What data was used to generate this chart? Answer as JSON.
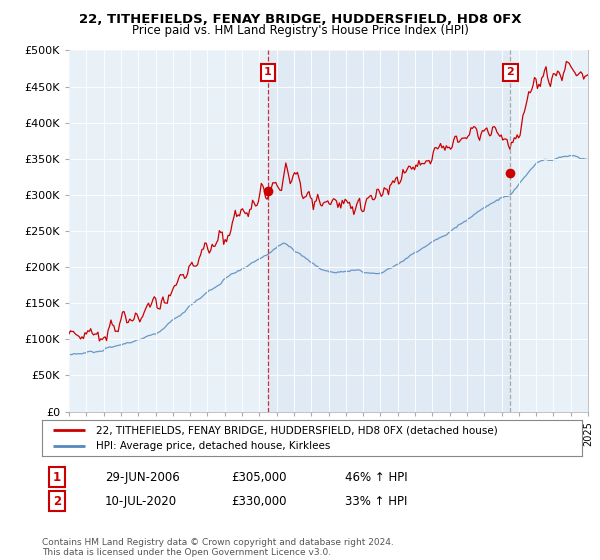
{
  "title": "22, TITHEFIELDS, FENAY BRIDGE, HUDDERSFIELD, HD8 0FX",
  "subtitle": "Price paid vs. HM Land Registry's House Price Index (HPI)",
  "legend_line1": "22, TITHEFIELDS, FENAY BRIDGE, HUDDERSFIELD, HD8 0FX (detached house)",
  "legend_line2": "HPI: Average price, detached house, Kirklees",
  "annotation1_label": "1",
  "annotation1_date": "29-JUN-2006",
  "annotation1_price": "£305,000",
  "annotation1_hpi": "46% ↑ HPI",
  "annotation2_label": "2",
  "annotation2_date": "10-JUL-2020",
  "annotation2_price": "£330,000",
  "annotation2_hpi": "33% ↑ HPI",
  "copyright": "Contains HM Land Registry data © Crown copyright and database right 2024.\nThis data is licensed under the Open Government Licence v3.0.",
  "red_color": "#cc0000",
  "blue_color": "#5588bb",
  "vline1_x": 2006.5,
  "vline2_x": 2020.5,
  "marker1_x": 2006.5,
  "marker1_y": 305000,
  "marker2_x": 2020.5,
  "marker2_y": 330000,
  "bg_color": "#e8f0f8",
  "ylim": [
    0,
    500000
  ],
  "xlim_start": 1995,
  "xlim_end": 2025
}
